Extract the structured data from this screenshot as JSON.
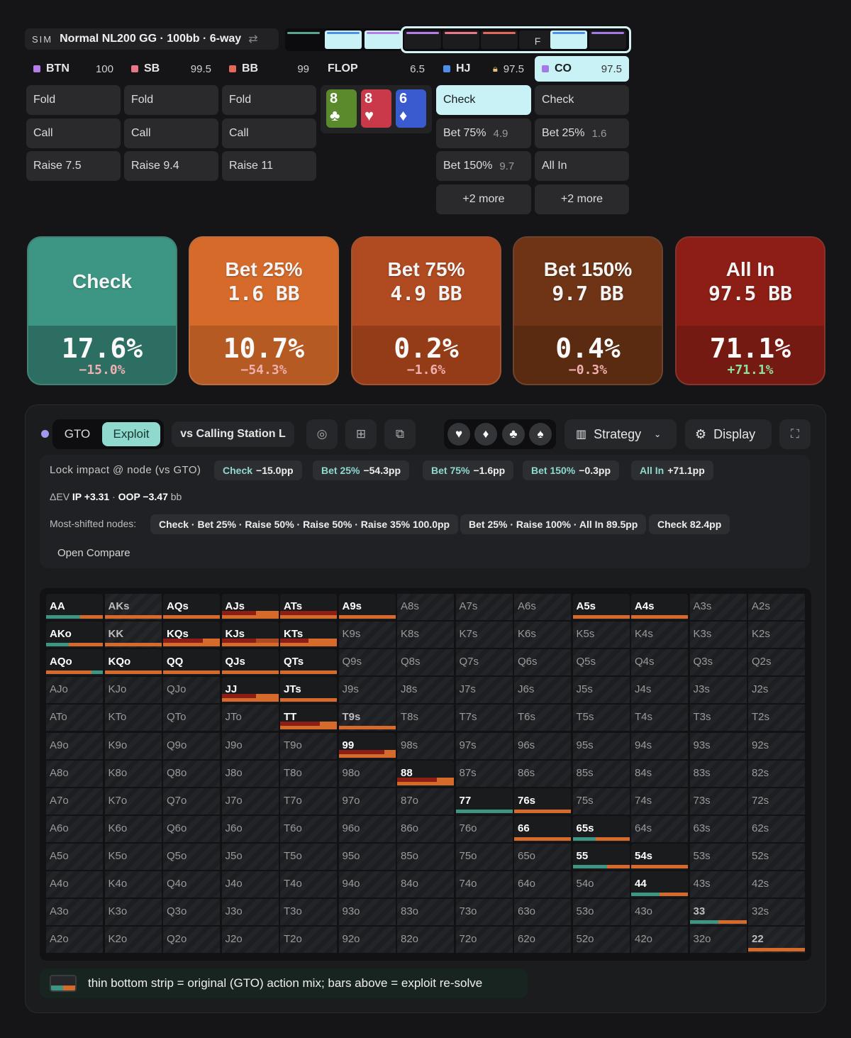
{
  "sim_bar": {
    "tag": "SIM",
    "title": "Normal NL200 GG · 100bb · 6-way",
    "swap_icon": "⇄"
  },
  "timeline": {
    "flop_marker": "F"
  },
  "seats": [
    {
      "name": "BTN",
      "stack": "100",
      "color": "#b57ee6",
      "actions": [
        {
          "label": "Fold",
          "ev": ""
        },
        {
          "label": "Call",
          "ev": ""
        },
        {
          "label": "Raise 7.5",
          "ev": ""
        }
      ]
    },
    {
      "name": "SB",
      "stack": "99.5",
      "color": "#e6788a",
      "actions": [
        {
          "label": "Fold",
          "ev": ""
        },
        {
          "label": "Call",
          "ev": ""
        },
        {
          "label": "Raise 9.4",
          "ev": ""
        }
      ]
    },
    {
      "name": "BB",
      "stack": "99",
      "color": "#e36a5a",
      "actions": [
        {
          "label": "Fold",
          "ev": ""
        },
        {
          "label": "Call",
          "ev": ""
        },
        {
          "label": "Raise 11",
          "ev": ""
        }
      ]
    }
  ],
  "flop": {
    "label": "FLOP",
    "pot": "6.5",
    "cards": [
      {
        "rank": "8",
        "suit": "♣",
        "color": "#5a8a2c"
      },
      {
        "rank": "8",
        "suit": "♥",
        "color": "#c9394a"
      },
      {
        "rank": "6",
        "suit": "♦",
        "color": "#3a5bd0"
      }
    ]
  },
  "hj": {
    "name": "HJ",
    "stack": "97.5",
    "color": "#4f8ee8",
    "actions": [
      {
        "label": "Check",
        "ev": ""
      },
      {
        "label": "Bet 75%",
        "ev": "4.9"
      },
      {
        "label": "Bet 150%",
        "ev": "9.7"
      }
    ],
    "more": "+2 more"
  },
  "co": {
    "name": "CO",
    "stack": "97.5",
    "color": "#a47ae6",
    "actions": [
      {
        "label": "Check",
        "ev": ""
      },
      {
        "label": "Bet 25%",
        "ev": "1.6"
      },
      {
        "label": "All In",
        "ev": ""
      }
    ],
    "more": "+2 more"
  },
  "action_cards": [
    {
      "title": "Check",
      "size": "",
      "pct": "17.6%",
      "delta": "−15.0%",
      "top": "#3d9684",
      "bottom": "#2c6f62",
      "delta_color": "#f0b0b0"
    },
    {
      "title": "Bet 25%",
      "size": "1.6 BB",
      "pct": "10.7%",
      "delta": "−54.3%",
      "top": "#d56a2a",
      "bottom": "#b45a22",
      "delta_color": "#f0b0b0"
    },
    {
      "title": "Bet 75%",
      "size": "4.9 BB",
      "pct": "0.2%",
      "delta": "−1.6%",
      "top": "#b04a20",
      "bottom": "#943c18",
      "delta_color": "#f0b0b0"
    },
    {
      "title": "Bet 150%",
      "size": "9.7 BB",
      "pct": "0.4%",
      "delta": "−0.3%",
      "top": "#6e3415",
      "bottom": "#5a2a11",
      "delta_color": "#f0b0b0"
    },
    {
      "title": "All In",
      "size": "97.5 BB",
      "pct": "71.1%",
      "delta": "+71.1%",
      "top": "#8c1e15",
      "bottom": "#741a12",
      "delta_color": "#8fe0a0"
    }
  ],
  "toolbar": {
    "gto": "GTO",
    "exploit": "Exploit",
    "vs": "vs Calling Station L",
    "strategy": "Strategy",
    "display": "Display",
    "suits": [
      "♥",
      "♦",
      "♣",
      "♠"
    ]
  },
  "lock": {
    "title": "Lock impact @ node (vs GTO)",
    "impacts": [
      {
        "k": "Check",
        "v": "−15.0pp"
      },
      {
        "k": "Bet 25%",
        "v": "−54.3pp"
      },
      {
        "k": "Bet 75%",
        "v": "−1.6pp"
      },
      {
        "k": "Bet 150%",
        "v": "−0.3pp"
      },
      {
        "k": "All In",
        "v": "+71.1pp"
      }
    ],
    "ev_prefix": "ΔEV",
    "ev_ip": "IP +3.31",
    "ev_sep": " · ",
    "ev_oop": "OOP −3.47",
    "ev_unit": "bb",
    "shifted_label": "Most-shifted nodes:",
    "shifted": [
      "Check · Bet 25% · Raise 50% · Raise 50% · Raise 35% 100.0pp",
      "Bet 25% · Raise 100% · All In 89.5pp",
      "Check 82.4pp"
    ],
    "open_compare": "Open Compare"
  },
  "hands": [
    [
      "AA",
      "AKs",
      "AQs",
      "AJs",
      "ATs",
      "A9s",
      "A8s",
      "A7s",
      "A6s",
      "A5s",
      "A4s",
      "A3s",
      "A2s"
    ],
    [
      "AKo",
      "KK",
      "KQs",
      "KJs",
      "KTs",
      "K9s",
      "K8s",
      "K7s",
      "K6s",
      "K5s",
      "K4s",
      "K3s",
      "K2s"
    ],
    [
      "AQo",
      "KQo",
      "QQ",
      "QJs",
      "QTs",
      "Q9s",
      "Q8s",
      "Q7s",
      "Q6s",
      "Q5s",
      "Q4s",
      "Q3s",
      "Q2s"
    ],
    [
      "AJo",
      "KJo",
      "QJo",
      "JJ",
      "JTs",
      "J9s",
      "J8s",
      "J7s",
      "J6s",
      "J5s",
      "J4s",
      "J3s",
      "J2s"
    ],
    [
      "ATo",
      "KTo",
      "QTo",
      "JTo",
      "TT",
      "T9s",
      "T8s",
      "T7s",
      "T6s",
      "T5s",
      "T4s",
      "T3s",
      "T2s"
    ],
    [
      "A9o",
      "K9o",
      "Q9o",
      "J9o",
      "T9o",
      "99",
      "98s",
      "97s",
      "96s",
      "95s",
      "94s",
      "93s",
      "92s"
    ],
    [
      "A8o",
      "K8o",
      "Q8o",
      "J8o",
      "T8o",
      "98o",
      "88",
      "87s",
      "86s",
      "85s",
      "84s",
      "83s",
      "82s"
    ],
    [
      "A7o",
      "K7o",
      "Q7o",
      "J7o",
      "T7o",
      "97o",
      "87o",
      "77",
      "76s",
      "75s",
      "74s",
      "73s",
      "72s"
    ],
    [
      "A6o",
      "K6o",
      "Q6o",
      "J6o",
      "T6o",
      "96o",
      "86o",
      "76o",
      "66",
      "65s",
      "64s",
      "63s",
      "62s"
    ],
    [
      "A5o",
      "K5o",
      "Q5o",
      "J5o",
      "T5o",
      "95o",
      "85o",
      "75o",
      "65o",
      "55",
      "54s",
      "53s",
      "52s"
    ],
    [
      "A4o",
      "K4o",
      "Q4o",
      "J4o",
      "T4o",
      "94o",
      "84o",
      "74o",
      "64o",
      "54o",
      "44",
      "43s",
      "42s"
    ],
    [
      "A3o",
      "K3o",
      "Q3o",
      "J3o",
      "T3o",
      "93o",
      "83o",
      "73o",
      "63o",
      "53o",
      "43o",
      "33",
      "32s"
    ],
    [
      "A2o",
      "K2o",
      "Q2o",
      "J2o",
      "T2o",
      "92o",
      "82o",
      "72o",
      "62o",
      "52o",
      "42o",
      "32o",
      "22"
    ]
  ],
  "legend_text": "thin bottom strip = original (GTO) action mix; bars above = exploit re-solve"
}
